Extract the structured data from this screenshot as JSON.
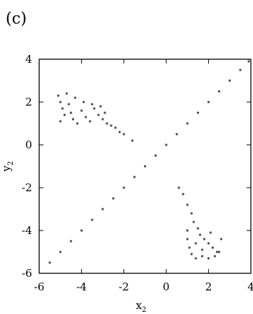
{
  "panel_label": "(c)",
  "chart_data": {
    "type": "scatter",
    "title": "",
    "xlabel": "x",
    "xlabel_subscript": "2",
    "ylabel": "y",
    "ylabel_subscript": "2",
    "xlim": [
      -6,
      4
    ],
    "ylim": [
      -6,
      4
    ],
    "xticks": [
      "-6",
      "-4",
      "-2",
      "0",
      "2",
      "4"
    ],
    "yticks": [
      "-6",
      "-4",
      "-2",
      "0",
      "2",
      "4"
    ],
    "grid": false,
    "legend": "none",
    "point_color": "#111111",
    "series": [
      {
        "values": [
          {
            "x": -5.1,
            "y": 2.3
          },
          {
            "x": -5.0,
            "y": 2.0
          },
          {
            "x": -4.9,
            "y": 1.7
          },
          {
            "x": -4.8,
            "y": 1.4
          },
          {
            "x": -5.0,
            "y": 1.1
          },
          {
            "x": -4.7,
            "y": 2.4
          },
          {
            "x": -4.6,
            "y": 1.9
          },
          {
            "x": -4.5,
            "y": 1.5
          },
          {
            "x": -4.4,
            "y": 1.2
          },
          {
            "x": -4.2,
            "y": 1.0
          },
          {
            "x": -4.0,
            "y": 1.6
          },
          {
            "x": -3.8,
            "y": 1.3
          },
          {
            "x": -3.6,
            "y": 1.1
          },
          {
            "x": -3.4,
            "y": 1.7
          },
          {
            "x": -3.2,
            "y": 1.4
          },
          {
            "x": -3.0,
            "y": 1.2
          },
          {
            "x": -2.8,
            "y": 1.0
          },
          {
            "x": -2.6,
            "y": 0.9
          },
          {
            "x": -2.4,
            "y": 0.8
          },
          {
            "x": -2.2,
            "y": 0.6
          },
          {
            "x": -4.3,
            "y": 2.2
          },
          {
            "x": -3.9,
            "y": 2.0
          },
          {
            "x": -3.5,
            "y": 1.9
          },
          {
            "x": -3.1,
            "y": 1.8
          },
          {
            "x": -2.9,
            "y": 1.5
          },
          {
            "x": -2.0,
            "y": 0.5
          },
          {
            "x": -1.6,
            "y": 0.2
          },
          {
            "x": 1.0,
            "y": -2.8
          },
          {
            "x": 1.2,
            "y": -3.2
          },
          {
            "x": 1.3,
            "y": -3.6
          },
          {
            "x": 1.5,
            "y": -3.9
          },
          {
            "x": 1.6,
            "y": -4.2
          },
          {
            "x": 1.8,
            "y": -4.4
          },
          {
            "x": 2.0,
            "y": -4.6
          },
          {
            "x": 2.2,
            "y": -4.8
          },
          {
            "x": 2.4,
            "y": -5.0
          },
          {
            "x": 1.0,
            "y": -4.0
          },
          {
            "x": 1.0,
            "y": -4.4
          },
          {
            "x": 1.1,
            "y": -4.8
          },
          {
            "x": 1.2,
            "y": -5.1
          },
          {
            "x": 1.4,
            "y": -5.3
          },
          {
            "x": 1.7,
            "y": -5.2
          },
          {
            "x": 2.0,
            "y": -5.3
          },
          {
            "x": 2.3,
            "y": -5.2
          },
          {
            "x": 2.5,
            "y": -5.0
          },
          {
            "x": 1.4,
            "y": -4.6
          },
          {
            "x": 1.7,
            "y": -4.9
          },
          {
            "x": 0.8,
            "y": -2.3
          },
          {
            "x": 0.6,
            "y": -2.0
          },
          {
            "x": 2.6,
            "y": -4.4
          },
          {
            "x": 2.1,
            "y": -4.1
          },
          {
            "x": -0.5,
            "y": -0.5
          },
          {
            "x": -1.5,
            "y": -1.5
          },
          {
            "x": -2.5,
            "y": -2.5
          },
          {
            "x": -3.5,
            "y": -3.5
          },
          {
            "x": -4.5,
            "y": -4.5
          },
          {
            "x": -5.5,
            "y": -5.5
          },
          {
            "x": 0.5,
            "y": 0.5
          },
          {
            "x": 1.5,
            "y": 1.5
          },
          {
            "x": 2.5,
            "y": 2.5
          },
          {
            "x": 3.5,
            "y": 3.5
          },
          {
            "x": 3.9,
            "y": 3.9
          },
          {
            "x": -1.0,
            "y": -1.0
          },
          {
            "x": -2.0,
            "y": -2.0
          },
          {
            "x": -3.0,
            "y": -3.0
          },
          {
            "x": -4.0,
            "y": -4.0
          },
          {
            "x": -5.0,
            "y": -5.0
          },
          {
            "x": 1.0,
            "y": 1.0
          },
          {
            "x": 2.0,
            "y": 2.0
          },
          {
            "x": 3.0,
            "y": 3.0
          },
          {
            "x": 0.0,
            "y": 0.0
          }
        ]
      }
    ]
  }
}
